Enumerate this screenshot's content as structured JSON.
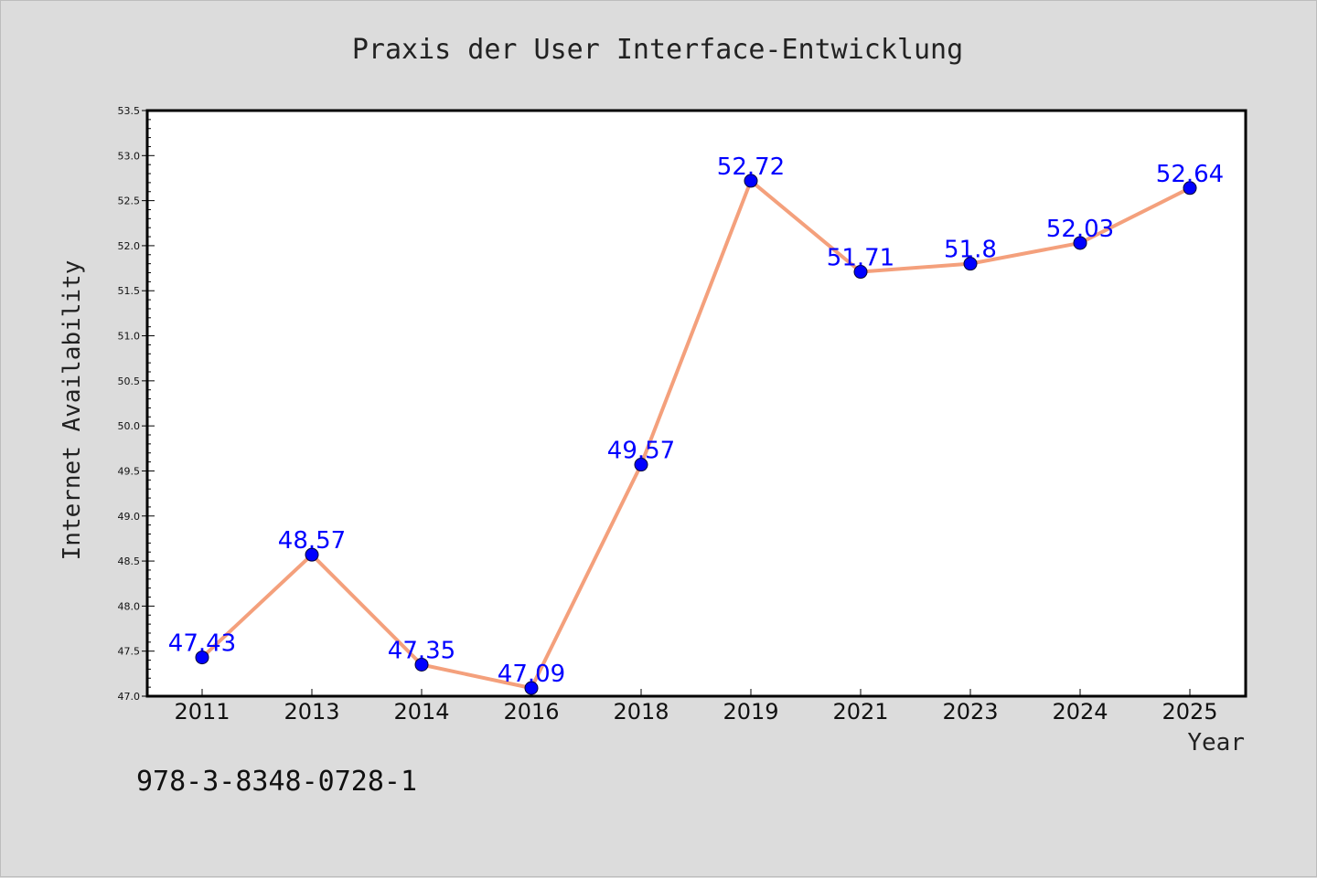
{
  "footer": {
    "isbn": "978-3-8348-0728-1"
  },
  "colors": {
    "background": "#dcdcdc",
    "plot_background": "#ffffff",
    "line": "#f4a07c",
    "marker": "#0000ff",
    "data_label": "#0000ff"
  },
  "chart_data": {
    "type": "line",
    "title": "Praxis der User Interface-Entwicklung",
    "xlabel": "Year",
    "ylabel": "Internet Availability",
    "categories": [
      "2011",
      "2013",
      "2014",
      "2016",
      "2018",
      "2019",
      "2021",
      "2023",
      "2024",
      "2025"
    ],
    "series": [
      {
        "values": [
          47.43,
          48.57,
          47.35,
          47.09,
          49.57,
          52.72,
          51.71,
          51.8,
          52.03,
          52.64
        ],
        "labels": [
          "47.43",
          "48.57",
          "47.35",
          "47.09",
          "49.57",
          "52.72",
          "51.71",
          "51.8",
          "52.03",
          "52.64"
        ]
      }
    ],
    "ylim": [
      47.0,
      53.5
    ],
    "yticks": [
      "47.0",
      "47.5",
      "48.0",
      "48.5",
      "49.0",
      "49.5",
      "50.0",
      "50.5",
      "51.0",
      "51.5",
      "52.0",
      "52.5",
      "53.0",
      "53.5"
    ],
    "grid": false,
    "legend": "none"
  }
}
